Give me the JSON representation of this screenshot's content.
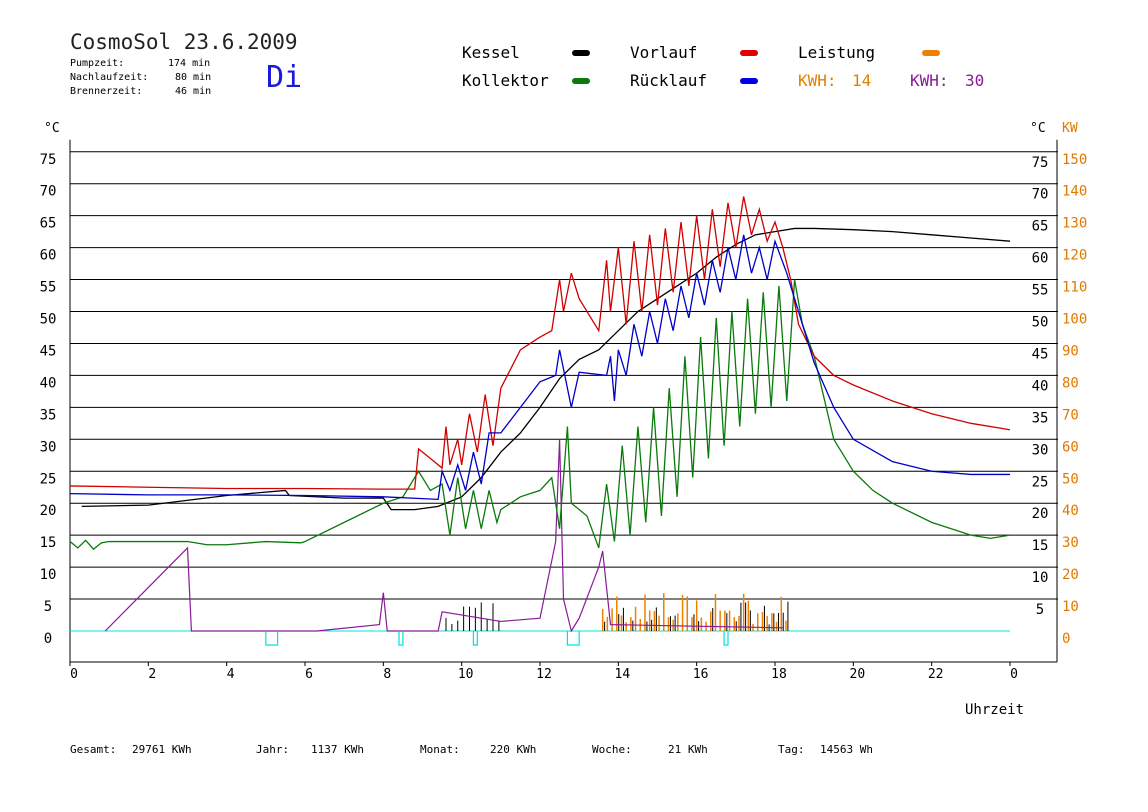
{
  "header": {
    "title": "CosmoSol 23.6.2009",
    "weekday": "Di",
    "stats": [
      {
        "label": "Pumpzeit:",
        "value": "174 min"
      },
      {
        "label": "Nachlaufzeit:",
        "value": "80 min"
      },
      {
        "label": "Brennerzeit:",
        "value": "46 min"
      }
    ]
  },
  "legend": {
    "kessel": "Kessel",
    "kollektor": "Kollektor",
    "vorlauf": "Vorlauf",
    "ruecklauf": "Rücklauf",
    "leistung": "Leistung",
    "kwh1_label": "KWH:",
    "kwh1_value": "14",
    "kwh2_label": "KWH:",
    "kwh2_value": "30"
  },
  "colors": {
    "kessel": "#000000",
    "kollektor": "#0a7a0a",
    "vorlauf": "#d00000",
    "ruecklauf": "#0000c8",
    "leistung": "#f08000",
    "kwh2": "#8a1a9a",
    "pump": "#00e0e0",
    "axis_right": "#e07800"
  },
  "footer": [
    {
      "label": "Gesamt:",
      "value": "29761 KWh"
    },
    {
      "label": "Jahr:",
      "value": "1137 KWh"
    },
    {
      "label": "Monat:",
      "value": "220 KWh"
    },
    {
      "label": "Woche:",
      "value": "21 KWh"
    },
    {
      "label": "Tag:",
      "value": "14563 Wh"
    }
  ],
  "chart_data": {
    "type": "line",
    "xlabel": "Uhrzeit",
    "ylabel_left": "°C",
    "ylabel_right_c": "°C",
    "ylabel_right_kw": "KW",
    "xlim": [
      0,
      24
    ],
    "ylim": [
      0,
      75
    ],
    "x_ticks": [
      "0",
      "2",
      "4",
      "6",
      "8",
      "10",
      "12",
      "14",
      "16",
      "18",
      "20",
      "22",
      "0"
    ],
    "y_ticks_left": [
      "0",
      "5",
      "10",
      "15",
      "20",
      "25",
      "30",
      "35",
      "40",
      "45",
      "50",
      "55",
      "60",
      "65",
      "70",
      "75"
    ],
    "y_ticks_right_c": [
      "5",
      "10",
      "15",
      "20",
      "25",
      "30",
      "35",
      "40",
      "45",
      "50",
      "55",
      "60",
      "65",
      "70",
      "75"
    ],
    "y_ticks_right_kw": [
      "0",
      "10",
      "20",
      "30",
      "40",
      "50",
      "60",
      "70",
      "80",
      "90",
      "100",
      "110",
      "120",
      "130",
      "140",
      "150"
    ],
    "grid": true,
    "series": [
      {
        "name": "Kessel",
        "color_key": "kessel",
        "points": [
          [
            0.3,
            19.5
          ],
          [
            2,
            19.7
          ],
          [
            4,
            21.2
          ],
          [
            5.5,
            22
          ],
          [
            5.6,
            21.2
          ],
          [
            7,
            20.8
          ],
          [
            8,
            20.8
          ],
          [
            8.2,
            19
          ],
          [
            8.8,
            19
          ],
          [
            9.4,
            19.5
          ],
          [
            10,
            21
          ],
          [
            10.5,
            24
          ],
          [
            11,
            28
          ],
          [
            11.5,
            31
          ],
          [
            12,
            35
          ],
          [
            12.5,
            39.5
          ],
          [
            13,
            42.5
          ],
          [
            13.5,
            44
          ],
          [
            14,
            47
          ],
          [
            14.5,
            50
          ],
          [
            15,
            52
          ],
          [
            15.5,
            54
          ],
          [
            16,
            56
          ],
          [
            16.5,
            58.5
          ],
          [
            17,
            60.5
          ],
          [
            17.5,
            62
          ],
          [
            18,
            62.5
          ],
          [
            18.5,
            63
          ],
          [
            19,
            63
          ],
          [
            20,
            62.8
          ],
          [
            21,
            62.5
          ],
          [
            22,
            62
          ],
          [
            23,
            61.5
          ],
          [
            24,
            61
          ]
        ]
      },
      {
        "name": "Kollektor",
        "color_key": "kollektor",
        "points": [
          [
            0,
            14
          ],
          [
            0.2,
            13
          ],
          [
            0.4,
            14.2
          ],
          [
            0.6,
            12.8
          ],
          [
            0.8,
            13.8
          ],
          [
            1,
            14
          ],
          [
            2,
            14
          ],
          [
            3,
            14
          ],
          [
            3.5,
            13.5
          ],
          [
            4,
            13.5
          ],
          [
            5,
            14
          ],
          [
            5.9,
            13.8
          ],
          [
            6,
            14
          ],
          [
            7,
            17
          ],
          [
            8,
            20
          ],
          [
            8.5,
            21
          ],
          [
            8.9,
            25
          ],
          [
            9.2,
            22
          ],
          [
            9.5,
            23
          ],
          [
            9.7,
            15
          ],
          [
            9.9,
            24
          ],
          [
            10.1,
            16
          ],
          [
            10.3,
            22
          ],
          [
            10.5,
            16
          ],
          [
            10.7,
            22
          ],
          [
            10.9,
            17
          ],
          [
            11,
            19
          ],
          [
            11.5,
            21
          ],
          [
            12,
            22
          ],
          [
            12.3,
            24
          ],
          [
            12.5,
            16
          ],
          [
            12.7,
            32
          ],
          [
            12.8,
            20
          ],
          [
            13.2,
            18
          ],
          [
            13.5,
            13
          ],
          [
            13.7,
            23
          ],
          [
            13.9,
            14
          ],
          [
            14.1,
            29
          ],
          [
            14.3,
            15
          ],
          [
            14.5,
            32
          ],
          [
            14.7,
            17
          ],
          [
            14.9,
            35
          ],
          [
            15.1,
            18
          ],
          [
            15.3,
            38
          ],
          [
            15.5,
            21
          ],
          [
            15.7,
            43
          ],
          [
            15.9,
            24
          ],
          [
            16.1,
            46
          ],
          [
            16.3,
            27
          ],
          [
            16.5,
            49
          ],
          [
            16.7,
            29
          ],
          [
            16.9,
            50
          ],
          [
            17.1,
            32
          ],
          [
            17.3,
            52
          ],
          [
            17.5,
            34
          ],
          [
            17.7,
            53
          ],
          [
            17.9,
            35
          ],
          [
            18.1,
            54
          ],
          [
            18.3,
            36
          ],
          [
            18.5,
            55
          ],
          [
            18.7,
            48
          ],
          [
            19,
            43
          ],
          [
            19.5,
            30
          ],
          [
            20,
            25
          ],
          [
            20.5,
            22
          ],
          [
            21,
            20
          ],
          [
            22,
            17
          ],
          [
            22.5,
            16
          ],
          [
            23,
            15
          ],
          [
            23.5,
            14.5
          ],
          [
            24,
            15
          ]
        ]
      },
      {
        "name": "Vorlauf",
        "color_key": "vorlauf",
        "points": [
          [
            0,
            22.7
          ],
          [
            2,
            22.5
          ],
          [
            4,
            22.3
          ],
          [
            6,
            22.3
          ],
          [
            8,
            22.2
          ],
          [
            8.8,
            22.2
          ],
          [
            8.9,
            28.5
          ],
          [
            9.3,
            26.5
          ],
          [
            9.5,
            25.5
          ],
          [
            9.6,
            32
          ],
          [
            9.7,
            26
          ],
          [
            9.9,
            30
          ],
          [
            10,
            26
          ],
          [
            10.2,
            34
          ],
          [
            10.4,
            28
          ],
          [
            10.6,
            37
          ],
          [
            10.8,
            29
          ],
          [
            11,
            38
          ],
          [
            11.5,
            44
          ],
          [
            12,
            46
          ],
          [
            12.3,
            47
          ],
          [
            12.5,
            55
          ],
          [
            12.6,
            50
          ],
          [
            12.8,
            56
          ],
          [
            13,
            52
          ],
          [
            13.5,
            47
          ],
          [
            13.7,
            58
          ],
          [
            13.8,
            50
          ],
          [
            14,
            60
          ],
          [
            14.2,
            48
          ],
          [
            14.4,
            61
          ],
          [
            14.6,
            50
          ],
          [
            14.8,
            62
          ],
          [
            15,
            51
          ],
          [
            15.2,
            63
          ],
          [
            15.4,
            53
          ],
          [
            15.6,
            64
          ],
          [
            15.8,
            54
          ],
          [
            16,
            65
          ],
          [
            16.2,
            55
          ],
          [
            16.4,
            66
          ],
          [
            16.6,
            57
          ],
          [
            16.8,
            67
          ],
          [
            17,
            60
          ],
          [
            17.2,
            68
          ],
          [
            17.4,
            62
          ],
          [
            17.6,
            66
          ],
          [
            17.8,
            61
          ],
          [
            18,
            64
          ],
          [
            18.2,
            60
          ],
          [
            18.4,
            55
          ],
          [
            18.6,
            48
          ],
          [
            19,
            43
          ],
          [
            19.5,
            40
          ],
          [
            20,
            38.5
          ],
          [
            21,
            36
          ],
          [
            22,
            34
          ],
          [
            23,
            32.5
          ],
          [
            24,
            31.5
          ]
        ]
      },
      {
        "name": "Rücklauf",
        "color_key": "ruecklauf",
        "points": [
          [
            0,
            21.5
          ],
          [
            2,
            21.3
          ],
          [
            4,
            21.3
          ],
          [
            6,
            21.2
          ],
          [
            8,
            21
          ],
          [
            9.4,
            20.6
          ],
          [
            9.5,
            25
          ],
          [
            9.7,
            22
          ],
          [
            9.9,
            26
          ],
          [
            10.1,
            22
          ],
          [
            10.3,
            28
          ],
          [
            10.5,
            23
          ],
          [
            10.7,
            31
          ],
          [
            11,
            31
          ],
          [
            11.5,
            35
          ],
          [
            12,
            39
          ],
          [
            12.4,
            40
          ],
          [
            12.5,
            44
          ],
          [
            12.6,
            41
          ],
          [
            12.8,
            35
          ],
          [
            13,
            40.5
          ],
          [
            13.7,
            40
          ],
          [
            13.8,
            43
          ],
          [
            13.9,
            36
          ],
          [
            14,
            44
          ],
          [
            14.2,
            40
          ],
          [
            14.4,
            48
          ],
          [
            14.6,
            43
          ],
          [
            14.8,
            50
          ],
          [
            15,
            45
          ],
          [
            15.2,
            52
          ],
          [
            15.4,
            47
          ],
          [
            15.6,
            54
          ],
          [
            15.8,
            49
          ],
          [
            16,
            56
          ],
          [
            16.2,
            51
          ],
          [
            16.4,
            58
          ],
          [
            16.6,
            53
          ],
          [
            16.8,
            60
          ],
          [
            17,
            55
          ],
          [
            17.2,
            62
          ],
          [
            17.4,
            56
          ],
          [
            17.6,
            60
          ],
          [
            17.8,
            55
          ],
          [
            18,
            61
          ],
          [
            18.3,
            56
          ],
          [
            18.6,
            50
          ],
          [
            19,
            42
          ],
          [
            19.5,
            35
          ],
          [
            20,
            30
          ],
          [
            21,
            26.5
          ],
          [
            22,
            25
          ],
          [
            23,
            24.5
          ],
          [
            24,
            24.5
          ]
        ]
      }
    ]
  }
}
